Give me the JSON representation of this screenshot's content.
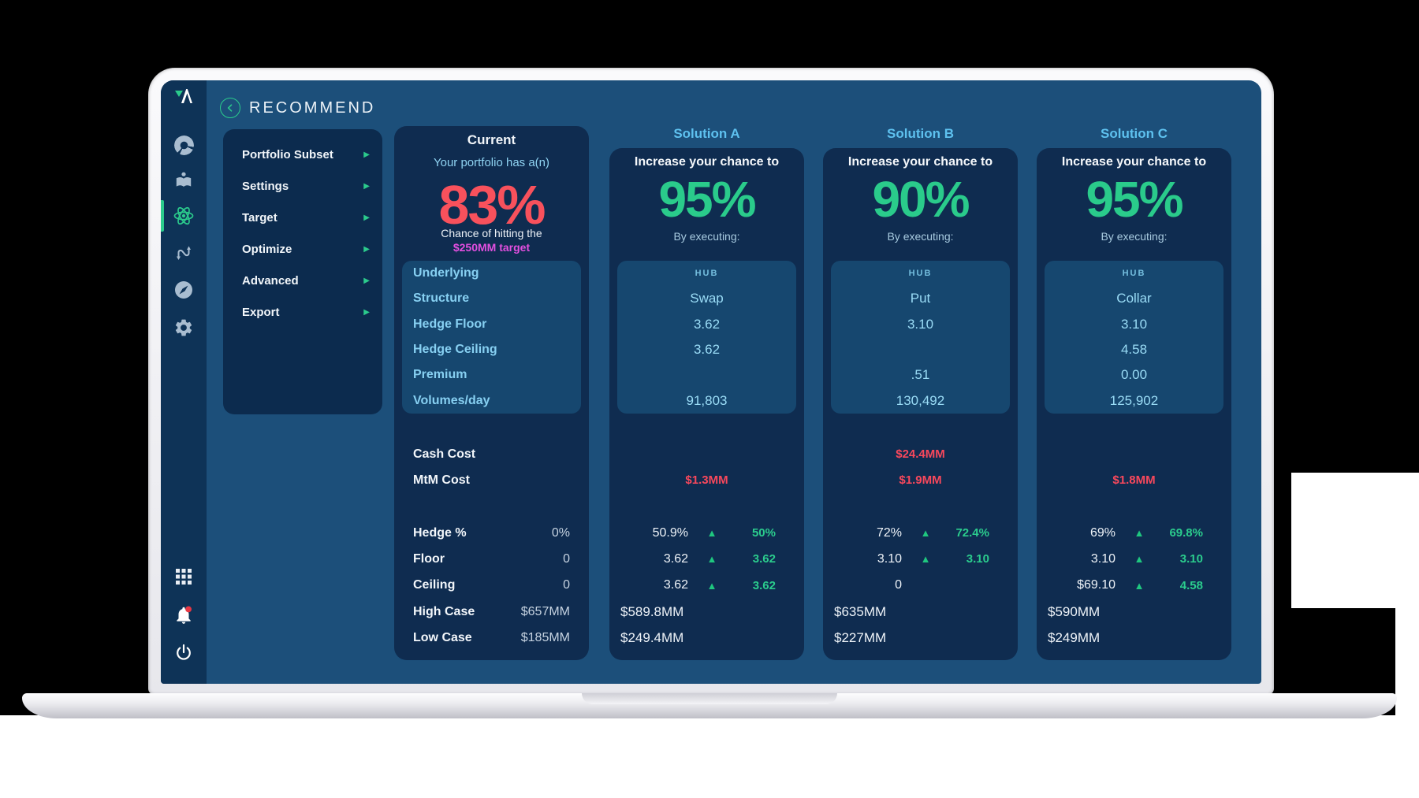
{
  "colors": {
    "accent_green": "#2bcb8c",
    "alert_red": "#f8505e",
    "highlight_magenta": "#e34fe0",
    "light_blue": "#8bd2f3",
    "title_blue": "#5ec1ef"
  },
  "logo": {
    "text": "A"
  },
  "header": {
    "title": "RECOMMEND",
    "back_icon": "chevron-left"
  },
  "sidebar": {
    "icons": [
      {
        "name": "pie-chart-icon"
      },
      {
        "name": "education-icon"
      },
      {
        "name": "atom-icon",
        "active": true
      },
      {
        "name": "swap-icon"
      },
      {
        "name": "compass-icon"
      },
      {
        "name": "gear-icon"
      }
    ],
    "utility_icons": [
      {
        "name": "apps-grid-icon"
      },
      {
        "name": "bell-icon",
        "badge": true
      },
      {
        "name": "power-icon"
      }
    ]
  },
  "menu": {
    "arrow_icon": "▶",
    "items": [
      {
        "label": "Portfolio Subset"
      },
      {
        "label": "Settings"
      },
      {
        "label": "Target"
      },
      {
        "label": "Optimize"
      },
      {
        "label": "Advanced"
      },
      {
        "label": "Export"
      }
    ]
  },
  "current": {
    "title": "Current",
    "subtitle": "Your portfolio has a(n)",
    "percent": "83%",
    "caption_line1": "Chance of hitting the",
    "caption_line2": "$250MM target",
    "row_labels": [
      "Underlying",
      "Structure",
      "Hedge Floor",
      "Hedge Ceiling",
      "Premium",
      "Volumes/day"
    ],
    "cost_labels": [
      "Cash Cost",
      "MtM Cost"
    ],
    "stats": [
      {
        "label": "Hedge %",
        "value": "0%"
      },
      {
        "label": "Floor",
        "value": "0"
      },
      {
        "label": "Ceiling",
        "value": "0"
      },
      {
        "label": "High Case",
        "value": "$657MM"
      },
      {
        "label": "Low Case",
        "value": "$185MM"
      }
    ]
  },
  "solutions": [
    {
      "title": "Solution A",
      "lead": "Increase your chance to",
      "percent": "95%",
      "sub": "By executing:",
      "hub_label": "HUB",
      "values": [
        "Swap",
        "3.62",
        "3.62",
        "",
        "91,803"
      ],
      "cash_cost": "",
      "mtm_cost": "$1.3MM",
      "comparisons": [
        {
          "current": "50.9%",
          "tri": "▲",
          "proposed": "50%"
        },
        {
          "current": "3.62",
          "tri": "▲",
          "proposed": "3.62"
        },
        {
          "current": "3.62",
          "tri": "▲",
          "proposed": "3.62"
        }
      ],
      "high_case": "$589.8MM",
      "low_case": "$249.4MM"
    },
    {
      "title": "Solution B",
      "lead": "Increase your chance to",
      "percent": "90%",
      "sub": "By executing:",
      "hub_label": "HUB",
      "values": [
        "Put",
        "3.10",
        "",
        ".51",
        "130,492"
      ],
      "cash_cost": "$24.4MM",
      "mtm_cost": "$1.9MM",
      "comparisons": [
        {
          "current": "72%",
          "tri": "▲",
          "proposed": "72.4%"
        },
        {
          "current": "3.10",
          "tri": "▲",
          "proposed": "3.10"
        },
        {
          "current": "0",
          "tri": "",
          "proposed": ""
        }
      ],
      "high_case": "$635MM",
      "low_case": "$227MM"
    },
    {
      "title": "Solution C",
      "lead": "Increase your chance to",
      "percent": "95%",
      "sub": "By executing:",
      "hub_label": "HUB",
      "values": [
        "Collar",
        "3.10",
        "4.58",
        "0.00",
        "125,902"
      ],
      "cash_cost": "",
      "mtm_cost": "$1.8MM",
      "comparisons": [
        {
          "current": "69%",
          "tri": "▲",
          "proposed": "69.8%"
        },
        {
          "current": "3.10",
          "tri": "▲",
          "proposed": "3.10"
        },
        {
          "current": "$69.10",
          "tri": "▲",
          "proposed": "4.58"
        }
      ],
      "high_case": "$590MM",
      "low_case": "$249MM"
    }
  ]
}
